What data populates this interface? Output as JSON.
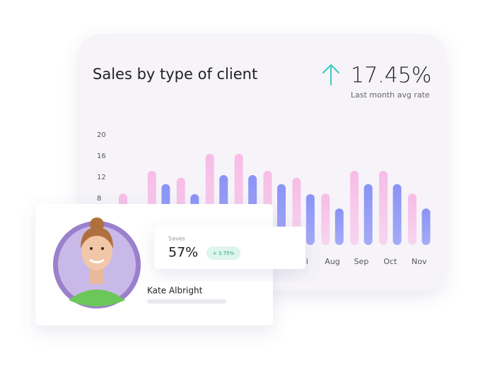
{
  "chart_data": {
    "type": "bar",
    "title": "Sales by type of client",
    "categories": [
      null,
      null,
      null,
      null,
      null,
      null,
      "Jul",
      "Aug",
      "Sep",
      "Oct",
      "Nov"
    ],
    "series": [
      {
        "color": "#f7bce6",
        "values": [
          9.7,
          14,
          12.7,
          17.2,
          17.2,
          14,
          12.7,
          9.7,
          14,
          14,
          9.7
        ]
      },
      {
        "color": "#8a93f6",
        "values": [
          null,
          11.5,
          9.6,
          13.2,
          13.2,
          11.5,
          9.6,
          6.9,
          11.5,
          11.5,
          6.9
        ]
      }
    ],
    "ylim": [
      0,
      20
    ],
    "yticks": [
      8,
      12,
      16,
      20
    ],
    "grid": false
  },
  "kpi": {
    "value": "17.45%",
    "label": "Last month avg rate"
  },
  "saves": {
    "label": "Saves",
    "value": "57%",
    "change": "+ 3.75%"
  },
  "profile": {
    "name": "Kate Albright"
  }
}
